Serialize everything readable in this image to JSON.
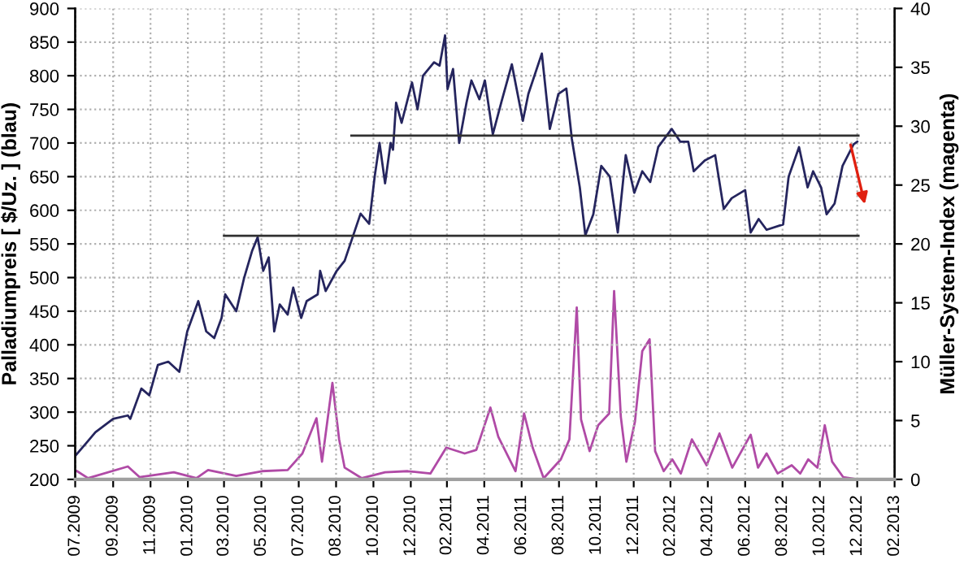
{
  "chart_data": {
    "type": "line",
    "ylabel": "Palladiumpreis [ $/Uz. ] (blau)",
    "y2label": "Müller-System-Index (magenta)",
    "xlim": [
      "2009-07-01",
      "2013-02-28"
    ],
    "xticks": [
      {
        "value": "2009-07-01",
        "label": "07.2009"
      },
      {
        "value": "2009-09-01",
        "label": "09.2009"
      },
      {
        "value": "2009-11-01",
        "label": "11.2009"
      },
      {
        "value": "2010-01-01",
        "label": "01.2010"
      },
      {
        "value": "2010-03-01",
        "label": "03.2010"
      },
      {
        "value": "2010-05-01",
        "label": "05.2010"
      },
      {
        "value": "2010-07-01",
        "label": "07.2010"
      },
      {
        "value": "2010-08-31",
        "label": "08.2010"
      },
      {
        "value": "2010-10-31",
        "label": "10.2010"
      },
      {
        "value": "2010-12-31",
        "label": "12.2010"
      },
      {
        "value": "2011-02-28",
        "label": "02.2011"
      },
      {
        "value": "2011-04-30",
        "label": "04.2011"
      },
      {
        "value": "2011-06-30",
        "label": "06.2011"
      },
      {
        "value": "2011-08-30",
        "label": "08.2011"
      },
      {
        "value": "2011-10-30",
        "label": "10.2011"
      },
      {
        "value": "2011-12-30",
        "label": "12.2011"
      },
      {
        "value": "2012-02-28",
        "label": "02.2012"
      },
      {
        "value": "2012-04-29",
        "label": "04.2012"
      },
      {
        "value": "2012-06-29",
        "label": "06.2012"
      },
      {
        "value": "2012-08-29",
        "label": "08.2012"
      },
      {
        "value": "2012-10-29",
        "label": "10.2012"
      },
      {
        "value": "2012-12-29",
        "label": "12.2012"
      },
      {
        "value": "2013-02-28",
        "label": "02.2013"
      }
    ],
    "ylim": [
      200,
      900
    ],
    "yticks": [
      200,
      250,
      300,
      350,
      400,
      450,
      500,
      550,
      600,
      650,
      700,
      750,
      800,
      850,
      900
    ],
    "y2lim": [
      0,
      40
    ],
    "y2ticks": [
      0,
      5,
      10,
      15,
      20,
      25,
      30,
      35,
      40
    ],
    "grid": true,
    "legend": false,
    "series": [
      {
        "color": "#25255e",
        "axis": "y",
        "x": [
          "2009-07-01",
          "2009-07-20",
          "2009-08-03",
          "2009-09-01",
          "2009-09-25",
          "2009-09-29",
          "2009-10-17",
          "2009-10-30",
          "2009-11-13",
          "2009-11-30",
          "2009-12-18",
          "2009-12-31",
          "2010-01-18",
          "2010-01-31",
          "2010-02-13",
          "2010-02-25",
          "2010-03-03",
          "2010-03-21",
          "2010-04-03",
          "2010-04-16",
          "2010-04-25",
          "2010-05-04",
          "2010-05-13",
          "2010-05-22",
          "2010-05-31",
          "2010-06-13",
          "2010-06-22",
          "2010-07-05",
          "2010-07-14",
          "2010-08-01",
          "2010-08-05",
          "2010-08-14",
          "2010-09-01",
          "2010-09-14",
          "2010-09-27",
          "2010-10-10",
          "2010-10-24",
          "2010-11-02",
          "2010-11-10",
          "2010-11-19",
          "2010-11-28",
          "2010-12-02",
          "2010-12-07",
          "2010-12-16",
          "2011-01-02",
          "2011-01-11",
          "2011-01-20",
          "2011-02-07",
          "2011-02-16",
          "2011-02-25",
          "2011-03-01",
          "2011-03-10",
          "2011-03-20",
          "2011-04-01",
          "2011-04-09",
          "2011-04-22",
          "2011-05-01",
          "2011-05-14",
          "2011-05-28",
          "2011-06-14",
          "2011-07-02",
          "2011-07-11",
          "2011-08-02",
          "2011-08-15",
          "2011-08-29",
          "2011-09-11",
          "2011-09-20",
          "2011-10-03",
          "2011-10-12",
          "2011-10-25",
          "2011-11-07",
          "2011-11-21",
          "2011-12-04",
          "2011-12-17",
          "2011-12-31",
          "2012-01-13",
          "2012-01-26",
          "2012-02-08",
          "2012-03-01",
          "2012-03-15",
          "2012-03-28",
          "2012-04-06",
          "2012-04-24",
          "2012-05-11",
          "2012-05-25",
          "2012-06-07",
          "2012-06-29",
          "2012-07-08",
          "2012-07-21",
          "2012-08-03",
          "2012-08-30",
          "2012-09-08",
          "2012-09-25",
          "2012-10-09",
          "2012-10-18",
          "2012-10-31",
          "2012-11-09",
          "2012-11-22",
          "2012-12-05",
          "2012-12-23",
          "2012-12-29"
        ],
        "values": [
          235,
          255,
          270,
          290,
          295,
          290,
          335,
          325,
          370,
          375,
          360,
          420,
          465,
          420,
          410,
          440,
          475,
          450,
          500,
          540,
          560,
          510,
          530,
          420,
          460,
          445,
          485,
          440,
          465,
          475,
          510,
          480,
          510,
          525,
          560,
          595,
          580,
          650,
          700,
          640,
          700,
          690,
          760,
          730,
          790,
          750,
          800,
          820,
          815,
          860,
          780,
          810,
          700,
          760,
          793,
          765,
          793,
          713,
          761,
          817,
          733,
          773,
          833,
          721,
          773,
          781,
          706,
          634,
          563,
          594,
          666,
          650,
          567,
          682,
          626,
          658,
          642,
          694,
          721,
          702,
          702,
          658,
          674,
          682,
          602,
          618,
          630,
          567,
          587,
          571,
          579,
          650,
          694,
          634,
          658,
          634,
          594,
          610,
          666,
          698,
          702
        ]
      },
      {
        "color": "#b04aa6",
        "axis": "y2",
        "x": [
          "2009-07-04",
          "2009-07-22",
          "2009-09-25",
          "2009-10-14",
          "2009-12-09",
          "2010-01-15",
          "2010-02-03",
          "2010-03-21",
          "2010-05-02",
          "2010-06-13",
          "2010-07-07",
          "2010-07-30",
          "2010-08-08",
          "2010-08-25",
          "2010-09-05",
          "2010-09-14",
          "2010-10-12",
          "2010-11-19",
          "2010-12-26",
          "2011-02-01",
          "2011-02-27",
          "2011-03-29",
          "2011-04-17",
          "2011-05-10",
          "2011-05-23",
          "2011-06-20",
          "2011-07-04",
          "2011-07-18",
          "2011-08-05",
          "2011-09-02",
          "2011-09-16",
          "2011-09-28",
          "2011-10-05",
          "2011-10-19",
          "2011-11-02",
          "2011-11-20",
          "2011-11-28",
          "2011-12-09",
          "2011-12-18",
          "2012-01-01",
          "2012-01-13",
          "2012-01-25",
          "2012-02-03",
          "2012-02-17",
          "2012-03-02",
          "2012-03-16",
          "2012-04-03",
          "2012-04-27",
          "2012-05-18",
          "2012-06-08",
          "2012-07-08",
          "2012-07-20",
          "2012-08-03",
          "2012-08-21",
          "2012-09-13",
          "2012-09-27",
          "2012-10-10",
          "2012-10-25",
          "2012-11-06",
          "2012-11-18",
          "2012-12-06",
          "2012-12-30"
        ],
        "values": [
          0.7,
          0.1,
          1.1,
          0.2,
          0.6,
          0.1,
          0.8,
          0.3,
          0.7,
          0.8,
          2.2,
          5.2,
          1.5,
          8.2,
          3.4,
          1.0,
          0.1,
          0.6,
          0.7,
          0.5,
          2.7,
          2.2,
          2.5,
          6.1,
          3.6,
          0.7,
          5.6,
          2.7,
          0.1,
          1.7,
          3.4,
          14.6,
          5.1,
          2.4,
          4.6,
          5.6,
          16.0,
          5.3,
          1.5,
          4.9,
          10.9,
          11.9,
          2.4,
          0.7,
          1.7,
          0.5,
          3.4,
          1.2,
          3.9,
          1.0,
          3.8,
          1.0,
          2.2,
          0.5,
          1.2,
          0.5,
          1.7,
          1.0,
          4.6,
          1.5,
          0.2,
          0.0
        ]
      },
      {
        "color": "#303030",
        "axis": "y",
        "x": [
          "2010-03-01",
          "2012-12-31"
        ],
        "values": [
          562,
          562
        ]
      },
      {
        "color": "#303030",
        "axis": "y",
        "x": [
          "2010-09-25",
          "2012-12-31"
        ],
        "values": [
          711,
          711
        ]
      }
    ]
  }
}
